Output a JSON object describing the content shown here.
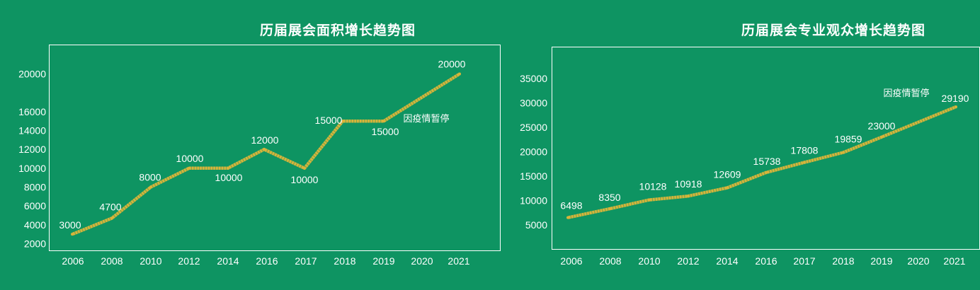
{
  "chart_data": [
    {
      "type": "line",
      "title": "历届展会面积增长趋势图",
      "categories": [
        "2006",
        "2008",
        "2010",
        "2012",
        "2014",
        "2016",
        "2017",
        "2018",
        "2019",
        "2020",
        "2021"
      ],
      "x": [
        2006,
        2008,
        2010,
        2012,
        2014,
        2016,
        2017,
        2018,
        2019,
        2021
      ],
      "values": [
        3000,
        4700,
        8000,
        10000,
        10000,
        12000,
        10000,
        15000,
        15000,
        20000
      ],
      "data_labels": [
        "3000",
        "4700",
        "8000",
        "10000",
        "10000",
        "12000",
        "10000",
        "15000",
        "15000",
        "20000"
      ],
      "yticks": [
        2000,
        4000,
        6000,
        8000,
        10000,
        12000,
        14000,
        16000,
        20000
      ],
      "annotation": "因疫情暂停",
      "line_color": "#d8b43a"
    },
    {
      "type": "line",
      "title": "历届展会专业观众增长趋势图",
      "categories": [
        "2006",
        "2008",
        "2010",
        "2012",
        "2014",
        "2016",
        "2017",
        "2018",
        "2019",
        "2020",
        "2021"
      ],
      "x": [
        2006,
        2008,
        2010,
        2012,
        2014,
        2016,
        2017,
        2018,
        2019,
        2021
      ],
      "values": [
        6498,
        8350,
        10128,
        10918,
        12609,
        15738,
        17808,
        19859,
        23000,
        29190
      ],
      "data_labels": [
        "6498",
        "8350",
        "10128",
        "10918",
        "12609",
        "15738",
        "17808",
        "19859",
        "23000",
        "29190"
      ],
      "yticks": [
        5000,
        10000,
        15000,
        20000,
        25000,
        30000,
        35000
      ],
      "annotation": "因疫情暂停",
      "line_color": "#d8b43a"
    }
  ]
}
